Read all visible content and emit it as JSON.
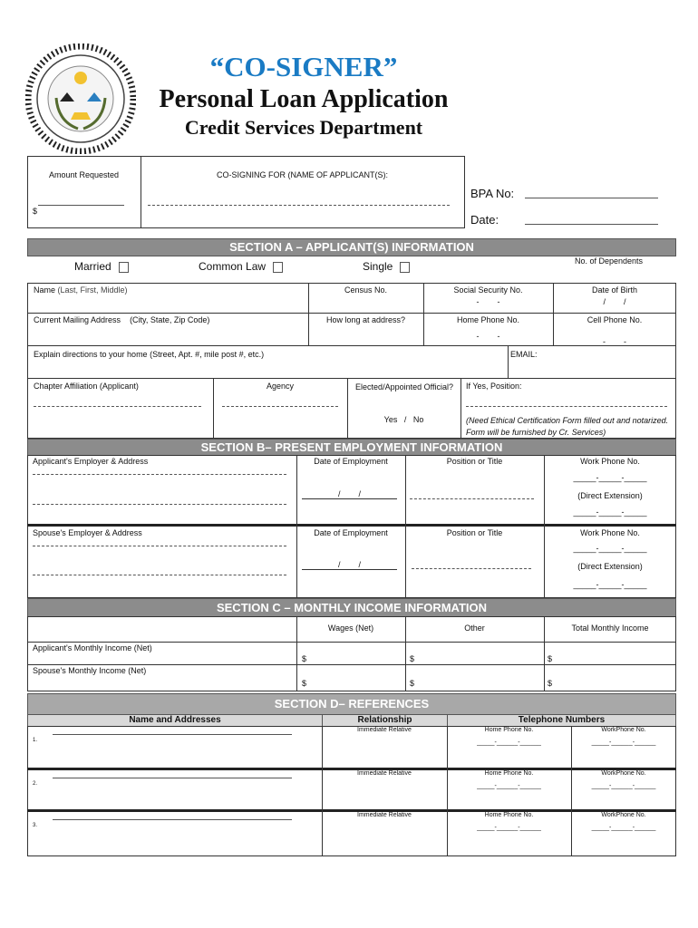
{
  "header": {
    "title": "“CO-SIGNER”",
    "subtitle": "Personal Loan Application",
    "department": "Credit Services Department",
    "title_color": "#1a7bc4",
    "seal_text": "GREAT SEAL OF THE NAVAJO NATION"
  },
  "top_box": {
    "amount_label": "Amount Requested",
    "amount_prefix": "$",
    "cosigning_label": "CO-SIGNING FOR (NAME OF APPLICANT(S):",
    "bpa_label": "BPA No:",
    "date_label": "Date:"
  },
  "section_a": {
    "title": "SECTION A – APPLICANT(S) INFORMATION",
    "marital": [
      "Married",
      "Common Law",
      "Single"
    ],
    "dependents": "No. of Dependents",
    "name": "Name",
    "name_hint": "(Last, First, Middle)",
    "census": "Census No.",
    "ssn": "Social Security No.",
    "ssn_sep": "-        -",
    "dob": "Date of Birth",
    "dob_sep": "/        /",
    "address": "Current Mailing Address",
    "address_hint": "(City, State, Zip Code)",
    "how_long": "How long at address?",
    "home_phone": "Home Phone No.",
    "cell_phone": "Cell Phone No.",
    "phone_sep": "-        -",
    "directions": "Explain directions to your home (Street, Apt. #, mile post #, etc.)",
    "email": "EMAIL:",
    "chapter": "Chapter Affiliation (Applicant)",
    "agency": "Agency",
    "elected": "Elected/Appointed Official?",
    "yes_no": "Yes   /   No",
    "position": "If Yes, Position:",
    "note": "(Need Ethical Certification Form filled out and notarized.  Form will be furnished by Cr. Services)"
  },
  "section_b": {
    "title": "SECTION B– PRESENT EMPLOYMENT INFORMATION",
    "applicant_employer": "Applicant's Employer & Address",
    "spouse_employer": "Spouse's Employer & Address",
    "date_employment": "Date of Employment",
    "position": "Position or Title",
    "work_phone": "Work Phone No.",
    "direct_ext": "(Direct Extension)",
    "date_sep": "/        /",
    "phone_blank": "_____-_____-_____"
  },
  "section_c": {
    "title": "SECTION C – MONTHLY INCOME INFORMATION",
    "columns": [
      "Wages (Net)",
      "Other",
      "Total Monthly Income"
    ],
    "rows": [
      "Applicant's Monthly Income (Net)",
      "Spouse's Monthly Income (Net)"
    ],
    "currency": "$"
  },
  "section_d": {
    "title": "SECTION D– REFERENCES",
    "columns": [
      "Name and Addresses",
      "Relationship",
      "Telephone Numbers"
    ],
    "rows": [
      {
        "num": "1."
      },
      {
        "num": "2."
      },
      {
        "num": "3."
      }
    ],
    "relationship": "Immediate Relative",
    "home_phone": "Home Phone No.",
    "work_phone": "WorkPhone No.",
    "phone_blank": "_____-______-______"
  }
}
